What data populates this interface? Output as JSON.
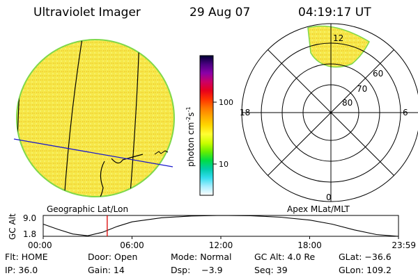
{
  "header": {
    "instrument": "Ultraviolet Imager",
    "date": "29 Aug 07",
    "time": "04:19:17 UT"
  },
  "colorbar": {
    "label": "photon cm⁻²s⁻¹",
    "label_main": "photon cm",
    "label_sup1": "-2",
    "label_mid": "s",
    "label_sup2": "-1",
    "ticks": [
      "100",
      "10"
    ],
    "tick_values": [
      100,
      10
    ],
    "colors": [
      "#000033",
      "#4b0082",
      "#8b00a8",
      "#cc0066",
      "#e8001c",
      "#ff3300",
      "#ff7700",
      "#ffaa00",
      "#ffd800",
      "#ffff33",
      "#ccff00",
      "#66ee00",
      "#00dd44",
      "#00ccaa",
      "#33ddee",
      "#aaeeff",
      "#ffffff"
    ]
  },
  "left_panel": {
    "caption": "Geographic Lat/Lon",
    "fill_color": "#f6e84a",
    "edge_color": "#7fd84a"
  },
  "right_panel": {
    "caption": "Apex MLat/MLT",
    "mlt_labels": {
      "top": "12",
      "left": "18",
      "right": "6",
      "bottom": "0"
    },
    "lat_labels": [
      "60",
      "70",
      "80"
    ]
  },
  "altitude_plot": {
    "ylabel": "GC Alt",
    "yticks": [
      "9.0",
      "1.8"
    ],
    "xticks": [
      "00:00",
      "06:00",
      "12:00",
      "18:00",
      "23:59"
    ],
    "marker_time": "04:19:17",
    "marker_color": "#dd0000",
    "curve": [
      {
        "t": 0.0,
        "alt": 6.0
      },
      {
        "t": 1.0,
        "alt": 4.2
      },
      {
        "t": 2.0,
        "alt": 2.6
      },
      {
        "t": 3.0,
        "alt": 2.0
      },
      {
        "t": 4.0,
        "alt": 3.2
      },
      {
        "t": 5.0,
        "alt": 5.2
      },
      {
        "t": 6.0,
        "alt": 6.8
      },
      {
        "t": 8.0,
        "alt": 8.2
      },
      {
        "t": 10.0,
        "alt": 8.8
      },
      {
        "t": 12.0,
        "alt": 9.0
      },
      {
        "t": 14.0,
        "alt": 8.9
      },
      {
        "t": 16.0,
        "alt": 8.4
      },
      {
        "t": 18.0,
        "alt": 7.4
      },
      {
        "t": 19.5,
        "alt": 6.0
      },
      {
        "t": 21.0,
        "alt": 4.0
      },
      {
        "t": 22.5,
        "alt": 2.4
      },
      {
        "t": 23.98,
        "alt": 1.8
      }
    ],
    "ylim": [
      1.8,
      9.0
    ],
    "xlim": [
      0,
      23.98
    ]
  },
  "info": {
    "row1": {
      "flt": "Flt: HOME",
      "door": "Door: Open",
      "mode": "Mode: Normal",
      "gcalt": "GC Alt: 4.0 Re",
      "glat": "GLat: −36.6"
    },
    "row2": {
      "ip": "IP: 36.0",
      "gain": "Gain: 14",
      "dsp": "Dsp:    −3.9",
      "seq": "Seq: 39",
      "glon": "GLon: 109.2"
    }
  }
}
